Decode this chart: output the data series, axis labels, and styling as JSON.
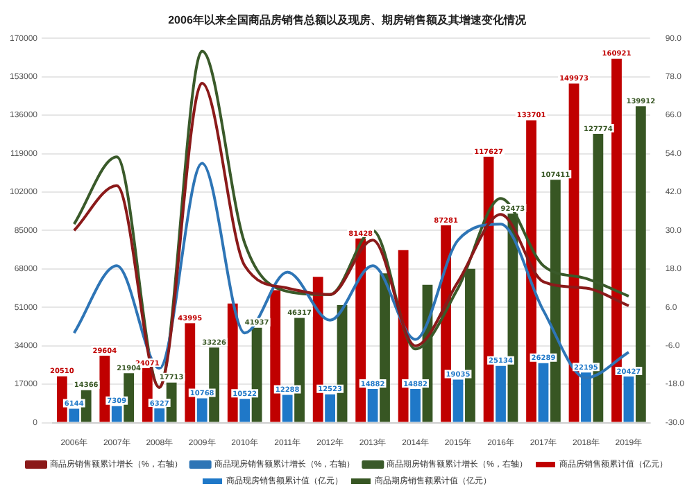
{
  "chart_data": {
    "type": "bar",
    "title": "2006年以来全国商品房销售总额以及现房、期房销售额及其增速变化情况",
    "categories": [
      "2006年",
      "2007年",
      "2008年",
      "2009年",
      "2010年",
      "2011年",
      "2012年",
      "2013年",
      "2014年",
      "2015年",
      "2016年",
      "2017年",
      "2018年",
      "2019年"
    ],
    "series": [
      {
        "name": "商品房销售额累计值（亿元）",
        "type": "bar",
        "color": "#c00000",
        "values": [
          20510,
          29604,
          24071,
          43995,
          52700,
          58600,
          64500,
          81428,
          76300,
          87281,
          117627,
          133701,
          149973,
          160921
        ],
        "value_labels": [
          "20510",
          "29604",
          "24071",
          "43995",
          null,
          null,
          null,
          "81428",
          null,
          "87281",
          "117627",
          "133701",
          "149973",
          "160921"
        ]
      },
      {
        "name": "商品现房销售额累计值（亿元）",
        "type": "bar",
        "color": "#1f78c8",
        "values": [
          6144,
          7309,
          6327,
          10768,
          10522,
          12288,
          12523,
          14882,
          14882,
          19035,
          25134,
          26289,
          22195,
          20427
        ],
        "value_labels": [
          "6144",
          "7309",
          "6327",
          "10768",
          "10522",
          "12288",
          "12523",
          "14882",
          "14882",
          "19035",
          "25134",
          "26289",
          "22195",
          "20427"
        ]
      },
      {
        "name": "商品期房销售额累计值（亿元）",
        "type": "bar",
        "color": "#375623",
        "values": [
          14366,
          21904,
          17713,
          33226,
          41937,
          46317,
          52000,
          66000,
          61000,
          68000,
          92473,
          107411,
          127774,
          139912
        ],
        "value_labels": [
          "14366",
          "21904",
          "17713",
          "33226",
          "41937",
          "46317",
          null,
          null,
          null,
          null,
          "92473",
          "107411",
          "127774",
          "139912"
        ]
      },
      {
        "name": "商品房销售额累计增长（%，右轴）",
        "type": "line",
        "axis": "y2",
        "color": "#8b1a1a",
        "values": [
          30,
          44,
          -19,
          76,
          19,
          12,
          10,
          27,
          -6,
          14,
          35,
          14,
          12,
          6.5
        ]
      },
      {
        "name": "商品现房销售额累计增长（%，右轴）",
        "type": "line",
        "axis": "y2",
        "color": "#2e75b6",
        "values": [
          -2,
          19,
          -13,
          51,
          -2,
          17,
          2,
          19,
          -4,
          27,
          32,
          5,
          -16,
          -8
        ]
      },
      {
        "name": "商品期房销售额累计增长（%，右轴）",
        "type": "line",
        "axis": "y2",
        "color": "#3a5a2a",
        "values": [
          32,
          53,
          -19,
          86,
          26,
          11,
          10,
          30,
          -7,
          12,
          40,
          19,
          15,
          9.5
        ]
      }
    ],
    "ylim": [
      0,
      170000
    ],
    "yticks": [
      0,
      17000,
      34000,
      51000,
      68000,
      85000,
      102000,
      119000,
      136000,
      153000,
      170000
    ],
    "y2lim": [
      -30,
      90
    ],
    "y2ticks": [
      {
        "value": -30,
        "label": "-30.0"
      },
      {
        "value": -18,
        "label": "-18.0"
      },
      {
        "value": -6,
        "label": "-6.0"
      },
      {
        "value": 6,
        "label": "6.0"
      },
      {
        "value": 18,
        "label": "18.0"
      },
      {
        "value": 30,
        "label": "30.0"
      },
      {
        "value": 42,
        "label": "42.0"
      },
      {
        "value": 54,
        "label": "54.0"
      },
      {
        "value": 66,
        "label": "66.0"
      },
      {
        "value": 78,
        "label": "78.0"
      },
      {
        "value": 90,
        "label": "90.0"
      }
    ],
    "grid": "y",
    "legend": "bottom",
    "marker": "none",
    "line_style": "solid"
  }
}
